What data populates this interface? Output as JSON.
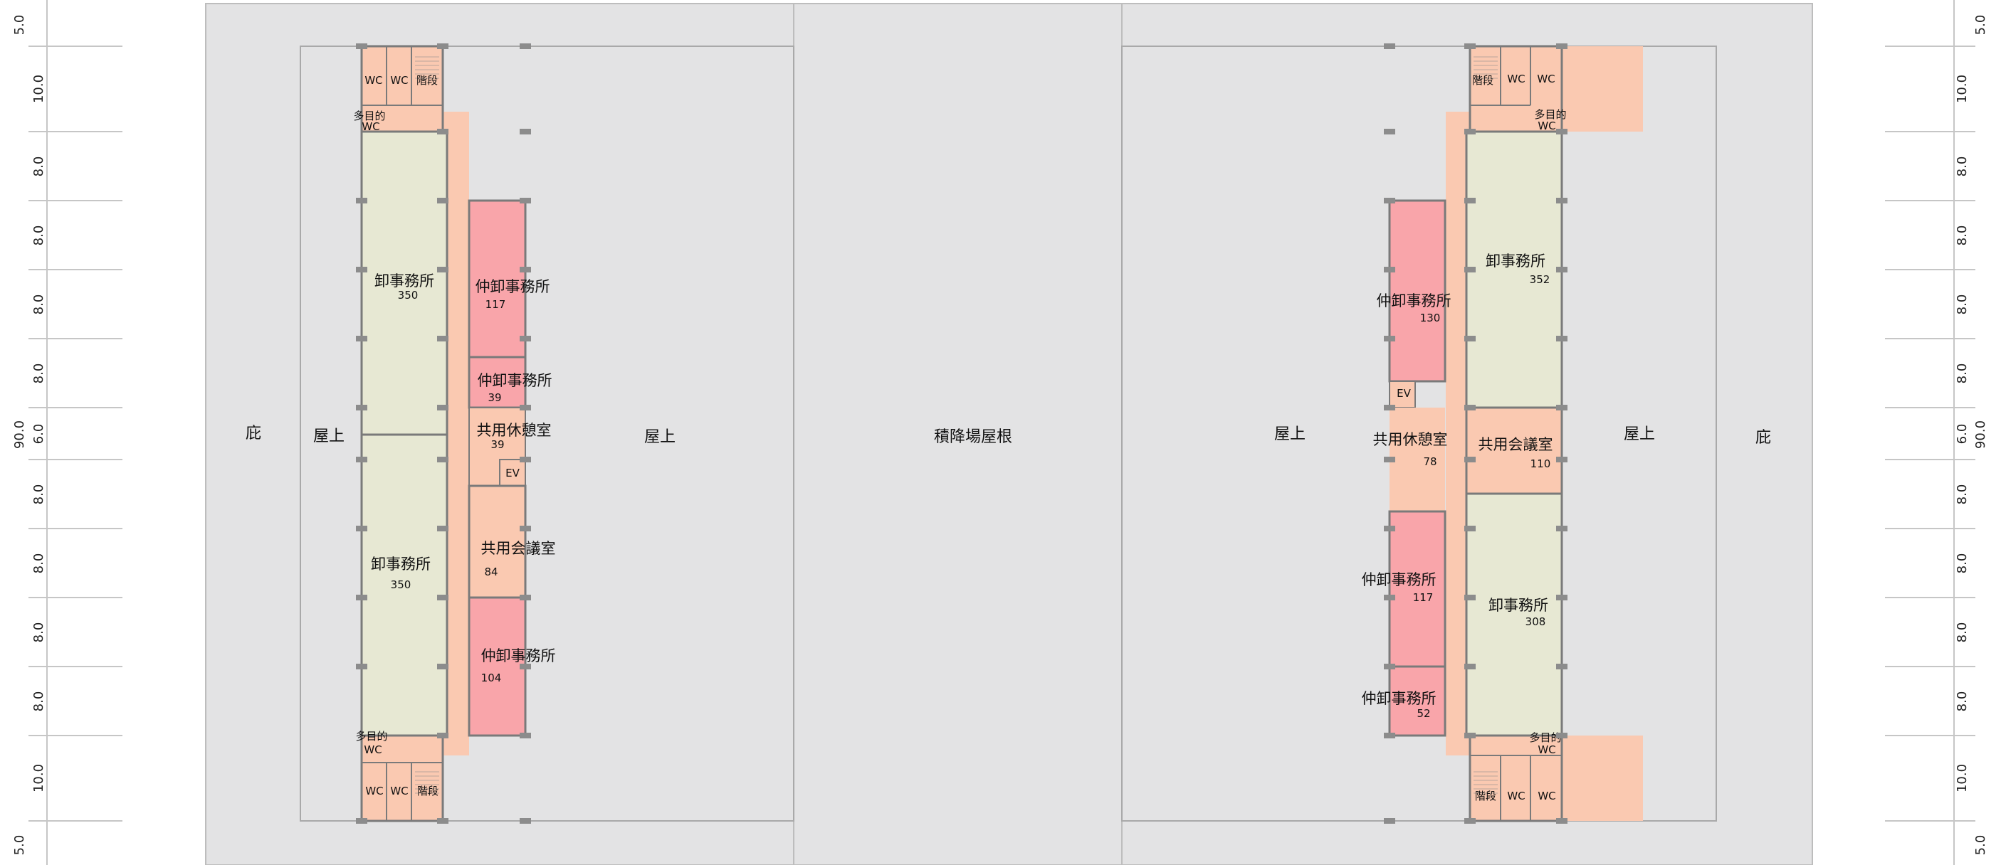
{
  "palette": {
    "roof": "#e3e3e4",
    "wholesale_office": "#e7e8d3",
    "intermediate_office": "#f9a5aa",
    "common_space": "#fac9b1",
    "wall": "#7a7a7a",
    "column": "#8c8c8c",
    "grid_line": "#c6c6c6"
  },
  "left_dimensions": {
    "total": "90.0",
    "spans": [
      "5.0",
      "10.0",
      "8.0",
      "8.0",
      "8.0",
      "8.0",
      "6.0",
      "8.0",
      "8.0",
      "8.0",
      "8.0",
      "10.0",
      "5.0"
    ]
  },
  "right_dimensions": {
    "total": "90.0",
    "spans": [
      "5.0",
      "10.0",
      "8.0",
      "8.0",
      "8.0",
      "8.0",
      "6.0",
      "8.0",
      "8.0",
      "8.0",
      "8.0",
      "10.0",
      "5.0"
    ]
  },
  "outer_labels": {
    "eave_left": "庇",
    "eave_right": "庇",
    "loading_roof": "積降場屋根"
  },
  "left_building": {
    "roof_west": "屋上",
    "roof_east": "屋上",
    "rooms": [
      {
        "name": "卸事務所",
        "area": "350"
      },
      {
        "name": "卸事務所",
        "area": "350"
      },
      {
        "name": "仲卸事務所",
        "area": "117"
      },
      {
        "name": "仲卸事務所",
        "area": "39"
      },
      {
        "name": "共用休憩室",
        "area": "39"
      },
      {
        "name": "共用会議室",
        "area": "84"
      },
      {
        "name": "仲卸事務所",
        "area": "104"
      }
    ],
    "service": {
      "wc": "WC",
      "stairs": "階段",
      "multipurpose": "多目的",
      "ev": "EV"
    }
  },
  "right_building": {
    "roof_west": "屋上",
    "roof_east": "屋上",
    "rooms": [
      {
        "name": "卸事務所",
        "area": "352"
      },
      {
        "name": "卸事務所",
        "area": "308"
      },
      {
        "name": "仲卸事務所",
        "area": "130"
      },
      {
        "name": "仲卸事務所",
        "area": "117"
      },
      {
        "name": "仲卸事務所",
        "area": "52"
      },
      {
        "name": "共用休憩室",
        "area": "78"
      },
      {
        "name": "共用会議室",
        "area": "110"
      }
    ],
    "service": {
      "wc": "WC",
      "stairs": "階段",
      "multipurpose": "多目的",
      "ev": "EV"
    }
  }
}
